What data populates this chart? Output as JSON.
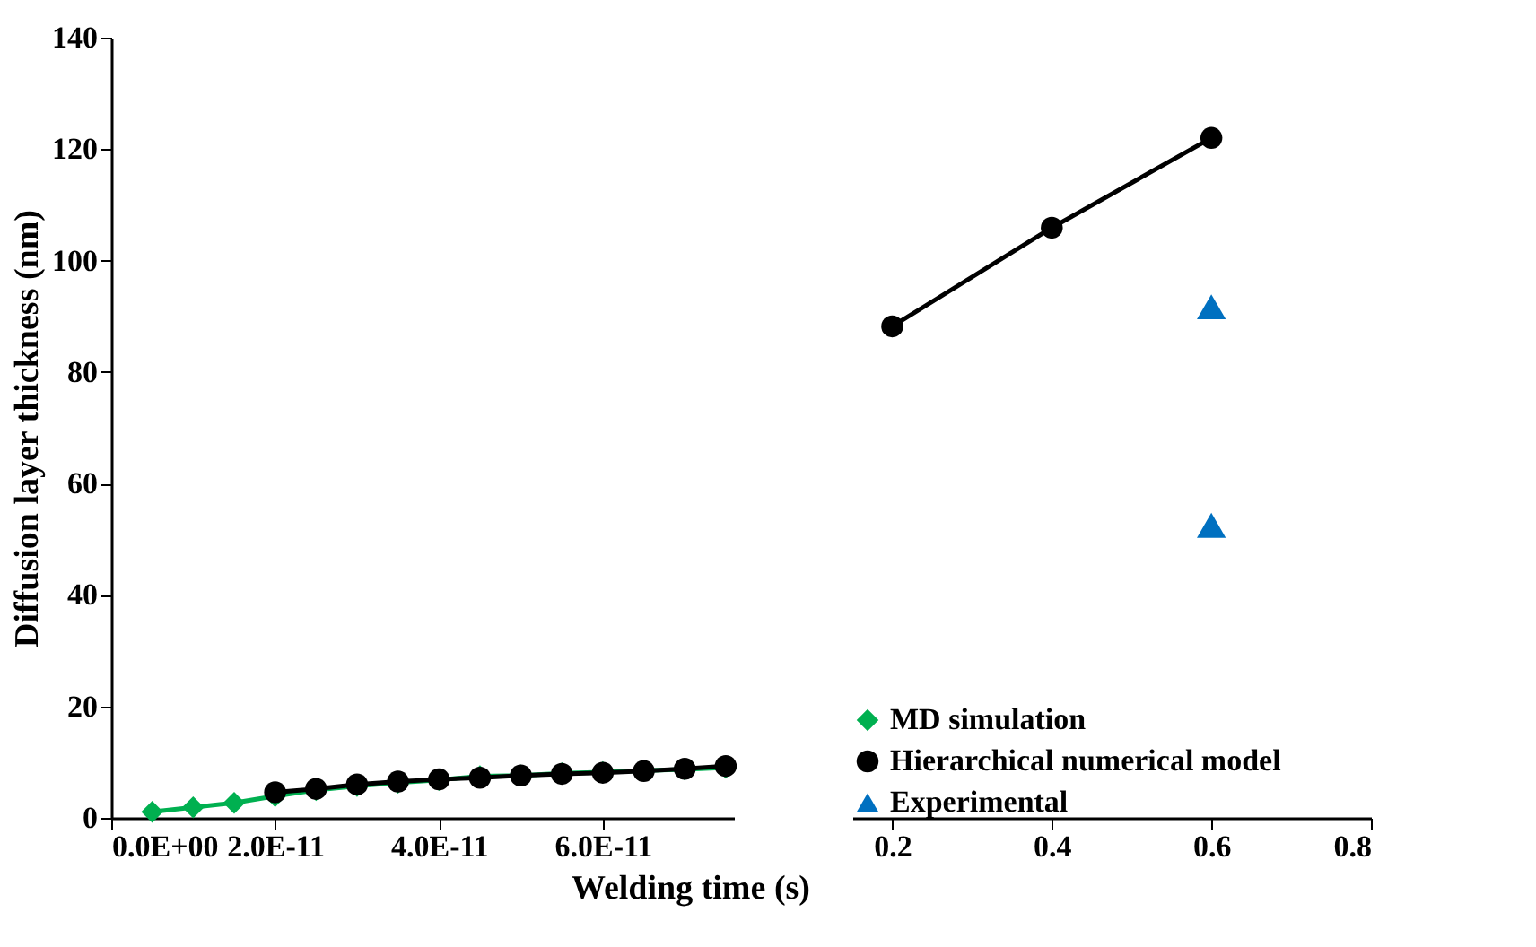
{
  "chart_data": [
    {
      "type": "line",
      "xlabel": "Welding time (s)",
      "ylabel": "Diffusion layer thickness (nm)",
      "xlim": [
        0,
        7.6e-11
      ],
      "xticks": [
        {
          "value": 0,
          "label": "0.0E+00"
        },
        {
          "value": 2e-11,
          "label": "2.0E-11"
        },
        {
          "value": 4e-11,
          "label": "4.0E-11"
        },
        {
          "value": 6e-11,
          "label": "6.0E-11"
        }
      ],
      "ylim": [
        0,
        140
      ],
      "yticks": [
        0,
        20,
        40,
        60,
        80,
        100,
        120,
        140
      ],
      "grid": false,
      "legend": false,
      "series": [
        {
          "marker": "diamond",
          "color": "#00b050",
          "x": [
            5e-12,
            1e-11,
            1.5e-11,
            2e-11,
            2.5e-11,
            3e-11,
            3.5e-11,
            4e-11,
            4.5e-11,
            5e-11,
            5.5e-11,
            6e-11,
            6.5e-11,
            7e-11,
            7.5e-11
          ],
          "values": [
            1.1,
            1.9,
            2.7,
            3.9,
            5.0,
            5.7,
            6.3,
            6.8,
            7.5,
            7.6,
            8.0,
            8.2,
            8.5,
            8.7,
            9.0
          ]
        },
        {
          "marker": "circle",
          "color": "#000000",
          "x": [
            2e-11,
            2.5e-11,
            3e-11,
            3.5e-11,
            4e-11,
            4.5e-11,
            5e-11,
            5.5e-11,
            6e-11,
            6.5e-11,
            7e-11,
            7.5e-11
          ],
          "values": [
            4.6,
            5.2,
            6.0,
            6.5,
            6.9,
            7.2,
            7.6,
            7.9,
            8.1,
            8.4,
            8.8,
            9.3
          ]
        }
      ]
    },
    {
      "type": "line",
      "xlim": [
        0.15,
        0.8
      ],
      "xticks": [
        0.2,
        0.4,
        0.6,
        0.8
      ],
      "ylim": [
        0,
        140
      ],
      "tick_labels": "x",
      "grid": false,
      "legend": "bottom left",
      "series": [
        {
          "name": "MD simulation",
          "marker": "diamond",
          "color": "#00b050"
        },
        {
          "name": "Hierarchical numerical model",
          "marker": "circle",
          "color": "#000000",
          "x": [
            0.2,
            0.4,
            0.6
          ],
          "values": [
            88.2,
            105.9,
            122.0
          ]
        },
        {
          "name": "Experimental",
          "type": "scatter",
          "marker": "triangle",
          "color": "#0070c0",
          "x": [
            0.6,
            0.6
          ],
          "values": [
            91.7,
            52.5
          ]
        }
      ]
    }
  ]
}
